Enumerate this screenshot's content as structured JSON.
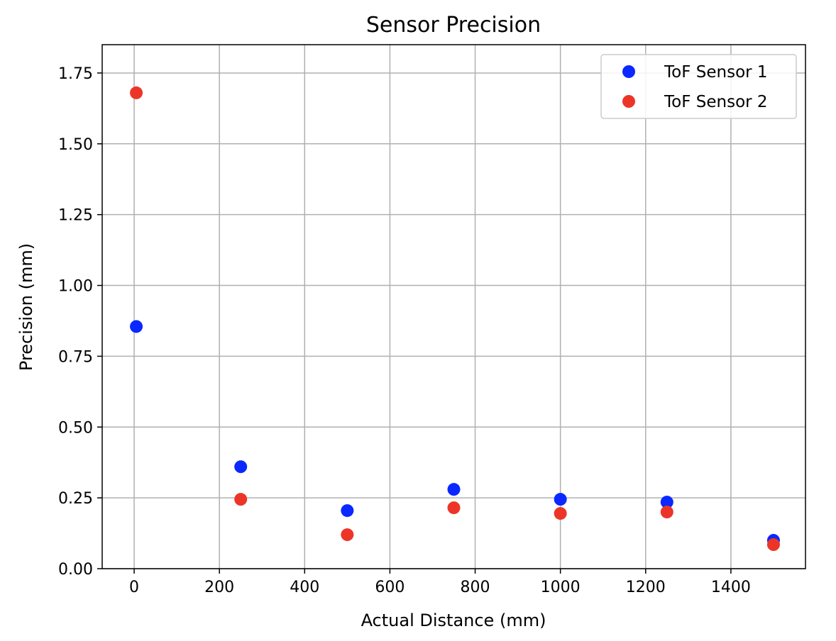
{
  "chart_data": {
    "type": "scatter",
    "title": "Sensor Precision",
    "xlabel": "Actual Distance (mm)",
    "ylabel": "Precision (mm)",
    "xlim": [
      -75,
      1575
    ],
    "ylim": [
      0,
      1.85
    ],
    "xticks": [
      0,
      200,
      400,
      600,
      800,
      1000,
      1200,
      1400
    ],
    "xtick_labels": [
      "0",
      "200",
      "400",
      "600",
      "800",
      "1000",
      "1200",
      "1400"
    ],
    "yticks": [
      0,
      0.25,
      0.5,
      0.75,
      1.0,
      1.25,
      1.5,
      1.75
    ],
    "ytick_labels": [
      "0.00",
      "0.25",
      "0.50",
      "0.75",
      "1.00",
      "1.25",
      "1.50",
      "1.75"
    ],
    "grid": true,
    "legend_position": "top-right",
    "series": [
      {
        "name": "ToF Sensor 1",
        "color": "#0a28ff",
        "points": [
          {
            "x": 5,
            "y": 0.855
          },
          {
            "x": 250,
            "y": 0.36
          },
          {
            "x": 500,
            "y": 0.205
          },
          {
            "x": 750,
            "y": 0.28
          },
          {
            "x": 1000,
            "y": 0.245
          },
          {
            "x": 1250,
            "y": 0.235
          },
          {
            "x": 1500,
            "y": 0.1
          }
        ]
      },
      {
        "name": "ToF Sensor 2",
        "color": "#ec3528",
        "points": [
          {
            "x": 5,
            "y": 1.68
          },
          {
            "x": 250,
            "y": 0.245
          },
          {
            "x": 500,
            "y": 0.12
          },
          {
            "x": 750,
            "y": 0.215
          },
          {
            "x": 1000,
            "y": 0.195
          },
          {
            "x": 1250,
            "y": 0.2
          },
          {
            "x": 1500,
            "y": 0.085
          }
        ]
      }
    ]
  }
}
